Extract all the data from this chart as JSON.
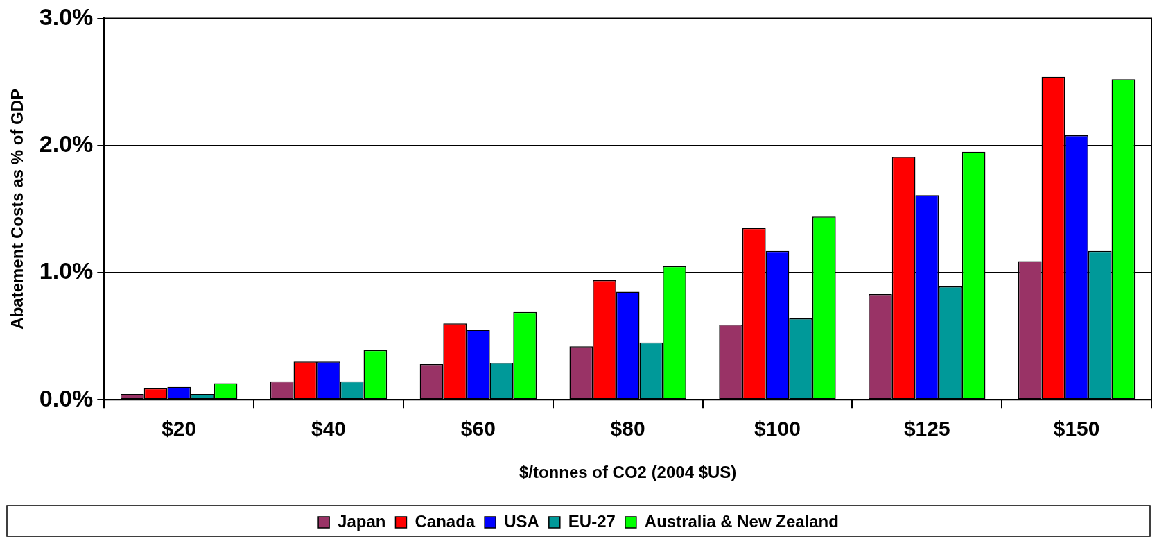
{
  "chart_data": {
    "type": "bar",
    "xlabel": "$/tonnes of CO2 (2004 $US)",
    "ylabel": "Abatement Costs as % of GDP",
    "categories": [
      "$20",
      "$40",
      "$60",
      "$80",
      "$100",
      "$125",
      "$150"
    ],
    "series": [
      {
        "name": "Japan",
        "color": "#993366",
        "values": [
          0.045,
          0.145,
          0.28,
          0.42,
          0.59,
          0.83,
          1.09
        ]
      },
      {
        "name": "Canada",
        "color": "#ff0000",
        "values": [
          0.09,
          0.3,
          0.6,
          0.94,
          1.35,
          1.91,
          2.54
        ]
      },
      {
        "name": "USA",
        "color": "#0000ff",
        "values": [
          0.1,
          0.3,
          0.55,
          0.85,
          1.17,
          1.61,
          2.08
        ]
      },
      {
        "name": "EU-27",
        "color": "#009999",
        "values": [
          0.045,
          0.145,
          0.29,
          0.45,
          0.64,
          0.89,
          1.17
        ]
      },
      {
        "name": "Australia & New Zealand",
        "color": "#00ff00",
        "values": [
          0.13,
          0.39,
          0.69,
          1.05,
          1.44,
          1.95,
          2.52
        ]
      }
    ],
    "ylim": [
      0,
      3
    ],
    "yticks": [
      {
        "value": 0,
        "label": "0.0%"
      },
      {
        "value": 1,
        "label": "1.0%"
      },
      {
        "value": 2,
        "label": "2.0%"
      },
      {
        "value": 3,
        "label": "3.0%"
      }
    ],
    "grid": "y",
    "legend": "bottom"
  }
}
